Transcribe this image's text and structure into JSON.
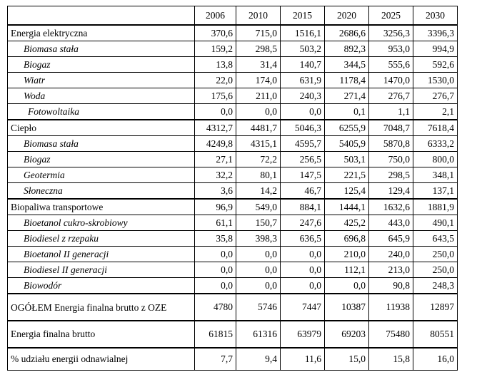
{
  "header": [
    "",
    "2006",
    "2010",
    "2015",
    "2020",
    "2025",
    "2030"
  ],
  "rows": [
    {
      "label": "Energia elektryczna",
      "values": [
        "370,6",
        "715,0",
        "1516,1",
        "2686,6",
        "3256,3",
        "3396,3"
      ],
      "sub": false,
      "groupStart": true
    },
    {
      "label": "Biomasa stała",
      "values": [
        "159,2",
        "298,5",
        "503,2",
        "892,3",
        "953,0",
        "994,9"
      ],
      "sub": true
    },
    {
      "label": "Biogaz",
      "values": [
        "13,8",
        "31,4",
        "140,7",
        "344,5",
        "555,6",
        "592,6"
      ],
      "sub": true
    },
    {
      "label": "Wiatr",
      "values": [
        "22,0",
        "174,0",
        "631,9",
        "1178,4",
        "1470,0",
        "1530,0"
      ],
      "sub": true
    },
    {
      "label": "Woda",
      "values": [
        "175,6",
        "211,0",
        "240,3",
        "271,4",
        "276,7",
        "276,7"
      ],
      "sub": true
    },
    {
      "label": "Fotowoltaika",
      "values": [
        "0,0",
        "0,0",
        "0,0",
        "0,1",
        "1,1",
        "2,1"
      ],
      "sub": true
    },
    {
      "label": "Ciepło",
      "values": [
        "4312,7",
        "4481,7",
        "5046,3",
        "6255,9",
        "7048,7",
        "7618,4"
      ],
      "sub": false,
      "groupStart": true
    },
    {
      "label": "Biomasa stała",
      "values": [
        "4249,8",
        "4315,1",
        "4595,7",
        "5405,9",
        "5870,8",
        "6333,2"
      ],
      "sub": true
    },
    {
      "label": "Biogaz",
      "values": [
        "27,1",
        "72,2",
        "256,5",
        "503,1",
        "750,0",
        "800,0"
      ],
      "sub": true
    },
    {
      "label": "Geotermia",
      "values": [
        "32,2",
        "80,1",
        "147,5",
        "221,5",
        "298,5",
        "348,1"
      ],
      "sub": true
    },
    {
      "label": "Słoneczna",
      "values": [
        "3,6",
        "14,2",
        "46,7",
        "125,4",
        "129,4",
        "137,1"
      ],
      "sub": true
    },
    {
      "label": "Biopaliwa transportowe",
      "values": [
        "96,9",
        "549,0",
        "884,1",
        "1444,1",
        "1632,6",
        "1881,9"
      ],
      "sub": false,
      "groupStart": true
    },
    {
      "label": "Bioetanol cukro-skrobiowy",
      "values": [
        "61,1",
        "150,7",
        "247,6",
        "425,2",
        "443,0",
        "490,1"
      ],
      "sub": true
    },
    {
      "label": "Biodiesel z rzepaku",
      "values": [
        "35,8",
        "398,3",
        "636,5",
        "696,8",
        "645,9",
        "643,5"
      ],
      "sub": true
    },
    {
      "label": "Bioetanol II generacji",
      "values": [
        "0,0",
        "0,0",
        "0,0",
        "210,0",
        "240,0",
        "250,0"
      ],
      "sub": true
    },
    {
      "label": "Biodiesel II generacji",
      "values": [
        "0,0",
        "0,0",
        "0,0",
        "112,1",
        "213,0",
        "250,0"
      ],
      "sub": true
    },
    {
      "label": "Biowodór",
      "values": [
        "0,0",
        "0,0",
        "0,0",
        "0,0",
        "90,8",
        "248,3"
      ],
      "sub": true
    },
    {
      "label": "OGÓŁEM Energia finalna brutto z OZE",
      "values": [
        "4780",
        "5746",
        "7447",
        "10387",
        "11938",
        "12897"
      ],
      "sub": false,
      "groupStart": true,
      "tall": true,
      "wrap": true
    },
    {
      "label": "Energia finalna brutto",
      "values": [
        "61815",
        "61316",
        "63979",
        "69203",
        "75480",
        "80551"
      ],
      "sub": false,
      "groupStart": true,
      "tall": true
    },
    {
      "label": "% udziału energii odnawialnej",
      "values": [
        "7,7",
        "9,4",
        "11,6",
        "15,0",
        "15,8",
        "16,0"
      ],
      "sub": false,
      "groupStart": true,
      "tall2": true
    }
  ]
}
